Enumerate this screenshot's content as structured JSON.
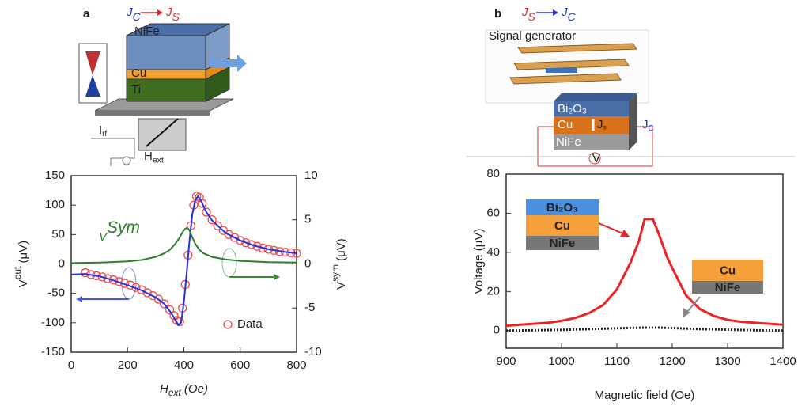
{
  "chart_data": [
    {
      "type": "line",
      "panel_label": "a",
      "heading_from": [
        "J",
        {
          "sub": "C"
        }
      ],
      "heading_to": [
        "J",
        {
          "sub": "S"
        }
      ],
      "schematic_labels": [
        "NiFe",
        "Cu",
        "Ti",
        [
          "I",
          {
            "sub": "rf"
          }
        ],
        [
          "H",
          {
            "sub": "ext"
          }
        ]
      ],
      "xlabel": [
        "H",
        {
          "sub": "ext"
        },
        " (Oe)"
      ],
      "ylabel": [
        "V",
        {
          "sup": "out"
        },
        " (μV)"
      ],
      "y2label": [
        "V",
        {
          "sup": "sym"
        },
        " (μV)"
      ],
      "annotation": [
        "V",
        {
          "sup": "Sym"
        }
      ],
      "xlim": [
        0,
        800
      ],
      "xticks": [
        0,
        200,
        400,
        600,
        800
      ],
      "ylim": [
        -150,
        150
      ],
      "yticks": [
        -150,
        -100,
        -50,
        0,
        50,
        100,
        150
      ],
      "y2lim": [
        -10,
        10
      ],
      "y2ticks": [
        -10,
        -5,
        0,
        5,
        10
      ],
      "series": [
        {
          "name": "Data",
          "color": "#f04848",
          "style": "markers",
          "x": [
            50,
            70,
            90,
            110,
            130,
            150,
            170,
            190,
            210,
            230,
            250,
            270,
            290,
            310,
            330,
            350,
            365,
            375,
            385,
            395,
            405,
            415,
            425,
            435,
            445,
            455,
            465,
            480,
            500,
            520,
            540,
            560,
            580,
            600,
            620,
            640,
            660,
            680,
            700,
            720,
            740,
            760,
            780,
            800
          ],
          "values": [
            -15,
            -18,
            -20,
            -22,
            -25,
            -27,
            -30,
            -33,
            -36,
            -40,
            -44,
            -49,
            -54,
            -60,
            -68,
            -78,
            -88,
            -96,
            -98,
            -75,
            -35,
            15,
            65,
            100,
            115,
            113,
            103,
            88,
            75,
            65,
            57,
            50,
            45,
            40,
            36,
            33,
            30,
            27,
            25,
            23,
            21,
            20,
            19,
            18
          ]
        },
        {
          "color": "#2233dd",
          "style": "line",
          "x": [
            0,
            50,
            100,
            150,
            200,
            250,
            300,
            330,
            350,
            370,
            380,
            390,
            400,
            410,
            420,
            430,
            440,
            450,
            460,
            480,
            500,
            550,
            600,
            650,
            700,
            750,
            800
          ],
          "values": [
            -18,
            -17,
            -21,
            -28,
            -36,
            -45,
            -57,
            -68,
            -80,
            -95,
            -104,
            -100,
            -65,
            -15,
            40,
            85,
            108,
            115,
            108,
            88,
            74,
            52,
            40,
            31,
            25,
            21,
            18
          ]
        },
        {
          "color": "#2e7d2e",
          "style": "line",
          "axis": "y2",
          "x": [
            0,
            100,
            200,
            250,
            300,
            330,
            350,
            370,
            385,
            395,
            405,
            412,
            420,
            430,
            440,
            455,
            470,
            500,
            550,
            600,
            700,
            800
          ],
          "values": [
            0.1,
            0.15,
            0.3,
            0.45,
            0.8,
            1.2,
            1.6,
            2.3,
            3.0,
            3.6,
            4.0,
            4.1,
            3.8,
            3.0,
            2.3,
            1.6,
            1.2,
            0.8,
            0.5,
            0.35,
            0.2,
            0.15
          ]
        }
      ]
    },
    {
      "type": "line",
      "panel_label": "b",
      "heading_from": [
        "J",
        {
          "sub": "S"
        }
      ],
      "heading_to": [
        "J",
        {
          "sub": "C"
        }
      ],
      "schematic_labels": [
        "Signal generator",
        "Bi₂O₃",
        "Cu",
        "NiFe",
        [
          "J",
          {
            "sub": "s"
          }
        ],
        [
          "J",
          {
            "sub": "C"
          }
        ],
        "V"
      ],
      "xlabel": "Magnetic field (Oe)",
      "ylabel": "Voltage (μV)",
      "insets": [
        [
          "Bi₂O₃",
          "Cu",
          "NiFe"
        ],
        [
          "Cu",
          "NiFe"
        ]
      ],
      "xlim": [
        900,
        1400
      ],
      "xticks": [
        900,
        1000,
        1100,
        1200,
        1300,
        1400
      ],
      "ylim": [
        -9,
        80
      ],
      "yticks": [
        0,
        20,
        40,
        60,
        80
      ],
      "series": [
        {
          "color": "#ee2222",
          "style": "line",
          "x": [
            900,
            925,
            950,
            975,
            1000,
            1025,
            1050,
            1075,
            1100,
            1125,
            1140,
            1150,
            1165,
            1175,
            1190,
            1200,
            1225,
            1250,
            1275,
            1300,
            1325,
            1350,
            1375,
            1400
          ],
          "values": [
            2.5,
            3,
            3.5,
            4,
            5,
            6.5,
            9,
            13,
            21,
            35,
            46,
            57,
            57,
            50,
            38,
            32,
            18,
            11,
            7.5,
            5.5,
            4.5,
            4,
            3.5,
            3
          ]
        },
        {
          "color": "#222222",
          "style": "dotted",
          "x": [
            900,
            950,
            1000,
            1050,
            1100,
            1150,
            1175,
            1200,
            1250,
            1300,
            1350,
            1400
          ],
          "values": [
            0,
            0.2,
            0.4,
            0.8,
            1.2,
            1.5,
            1.5,
            1.3,
            0.8,
            0.5,
            0.2,
            0
          ]
        }
      ]
    }
  ]
}
